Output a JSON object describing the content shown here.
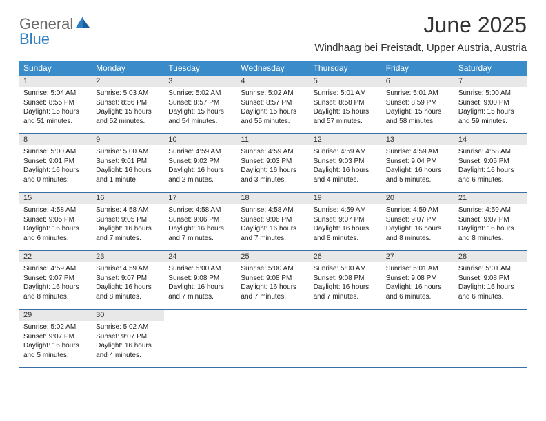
{
  "logo": {
    "general": "General",
    "blue": "Blue"
  },
  "title": "June 2025",
  "location": "Windhaag bei Freistadt, Upper Austria, Austria",
  "colors": {
    "header_bg": "#3a8bc9",
    "header_text": "#ffffff",
    "daynum_bg": "#e8e8e8",
    "week_border": "#3a6ea5",
    "logo_gray": "#6b6b6b",
    "logo_blue": "#2f7ec2"
  },
  "daysOfWeek": [
    "Sunday",
    "Monday",
    "Tuesday",
    "Wednesday",
    "Thursday",
    "Friday",
    "Saturday"
  ],
  "weeks": [
    [
      {
        "n": "1",
        "sr": "Sunrise: 5:04 AM",
        "ss": "Sunset: 8:55 PM",
        "dl": "Daylight: 15 hours and 51 minutes."
      },
      {
        "n": "2",
        "sr": "Sunrise: 5:03 AM",
        "ss": "Sunset: 8:56 PM",
        "dl": "Daylight: 15 hours and 52 minutes."
      },
      {
        "n": "3",
        "sr": "Sunrise: 5:02 AM",
        "ss": "Sunset: 8:57 PM",
        "dl": "Daylight: 15 hours and 54 minutes."
      },
      {
        "n": "4",
        "sr": "Sunrise: 5:02 AM",
        "ss": "Sunset: 8:57 PM",
        "dl": "Daylight: 15 hours and 55 minutes."
      },
      {
        "n": "5",
        "sr": "Sunrise: 5:01 AM",
        "ss": "Sunset: 8:58 PM",
        "dl": "Daylight: 15 hours and 57 minutes."
      },
      {
        "n": "6",
        "sr": "Sunrise: 5:01 AM",
        "ss": "Sunset: 8:59 PM",
        "dl": "Daylight: 15 hours and 58 minutes."
      },
      {
        "n": "7",
        "sr": "Sunrise: 5:00 AM",
        "ss": "Sunset: 9:00 PM",
        "dl": "Daylight: 15 hours and 59 minutes."
      }
    ],
    [
      {
        "n": "8",
        "sr": "Sunrise: 5:00 AM",
        "ss": "Sunset: 9:01 PM",
        "dl": "Daylight: 16 hours and 0 minutes."
      },
      {
        "n": "9",
        "sr": "Sunrise: 5:00 AM",
        "ss": "Sunset: 9:01 PM",
        "dl": "Daylight: 16 hours and 1 minute."
      },
      {
        "n": "10",
        "sr": "Sunrise: 4:59 AM",
        "ss": "Sunset: 9:02 PM",
        "dl": "Daylight: 16 hours and 2 minutes."
      },
      {
        "n": "11",
        "sr": "Sunrise: 4:59 AM",
        "ss": "Sunset: 9:03 PM",
        "dl": "Daylight: 16 hours and 3 minutes."
      },
      {
        "n": "12",
        "sr": "Sunrise: 4:59 AM",
        "ss": "Sunset: 9:03 PM",
        "dl": "Daylight: 16 hours and 4 minutes."
      },
      {
        "n": "13",
        "sr": "Sunrise: 4:59 AM",
        "ss": "Sunset: 9:04 PM",
        "dl": "Daylight: 16 hours and 5 minutes."
      },
      {
        "n": "14",
        "sr": "Sunrise: 4:58 AM",
        "ss": "Sunset: 9:05 PM",
        "dl": "Daylight: 16 hours and 6 minutes."
      }
    ],
    [
      {
        "n": "15",
        "sr": "Sunrise: 4:58 AM",
        "ss": "Sunset: 9:05 PM",
        "dl": "Daylight: 16 hours and 6 minutes."
      },
      {
        "n": "16",
        "sr": "Sunrise: 4:58 AM",
        "ss": "Sunset: 9:05 PM",
        "dl": "Daylight: 16 hours and 7 minutes."
      },
      {
        "n": "17",
        "sr": "Sunrise: 4:58 AM",
        "ss": "Sunset: 9:06 PM",
        "dl": "Daylight: 16 hours and 7 minutes."
      },
      {
        "n": "18",
        "sr": "Sunrise: 4:58 AM",
        "ss": "Sunset: 9:06 PM",
        "dl": "Daylight: 16 hours and 7 minutes."
      },
      {
        "n": "19",
        "sr": "Sunrise: 4:59 AM",
        "ss": "Sunset: 9:07 PM",
        "dl": "Daylight: 16 hours and 8 minutes."
      },
      {
        "n": "20",
        "sr": "Sunrise: 4:59 AM",
        "ss": "Sunset: 9:07 PM",
        "dl": "Daylight: 16 hours and 8 minutes."
      },
      {
        "n": "21",
        "sr": "Sunrise: 4:59 AM",
        "ss": "Sunset: 9:07 PM",
        "dl": "Daylight: 16 hours and 8 minutes."
      }
    ],
    [
      {
        "n": "22",
        "sr": "Sunrise: 4:59 AM",
        "ss": "Sunset: 9:07 PM",
        "dl": "Daylight: 16 hours and 8 minutes."
      },
      {
        "n": "23",
        "sr": "Sunrise: 4:59 AM",
        "ss": "Sunset: 9:07 PM",
        "dl": "Daylight: 16 hours and 8 minutes."
      },
      {
        "n": "24",
        "sr": "Sunrise: 5:00 AM",
        "ss": "Sunset: 9:08 PM",
        "dl": "Daylight: 16 hours and 7 minutes."
      },
      {
        "n": "25",
        "sr": "Sunrise: 5:00 AM",
        "ss": "Sunset: 9:08 PM",
        "dl": "Daylight: 16 hours and 7 minutes."
      },
      {
        "n": "26",
        "sr": "Sunrise: 5:00 AM",
        "ss": "Sunset: 9:08 PM",
        "dl": "Daylight: 16 hours and 7 minutes."
      },
      {
        "n": "27",
        "sr": "Sunrise: 5:01 AM",
        "ss": "Sunset: 9:08 PM",
        "dl": "Daylight: 16 hours and 6 minutes."
      },
      {
        "n": "28",
        "sr": "Sunrise: 5:01 AM",
        "ss": "Sunset: 9:08 PM",
        "dl": "Daylight: 16 hours and 6 minutes."
      }
    ],
    [
      {
        "n": "29",
        "sr": "Sunrise: 5:02 AM",
        "ss": "Sunset: 9:07 PM",
        "dl": "Daylight: 16 hours and 5 minutes."
      },
      {
        "n": "30",
        "sr": "Sunrise: 5:02 AM",
        "ss": "Sunset: 9:07 PM",
        "dl": "Daylight: 16 hours and 4 minutes."
      },
      null,
      null,
      null,
      null,
      null
    ]
  ]
}
